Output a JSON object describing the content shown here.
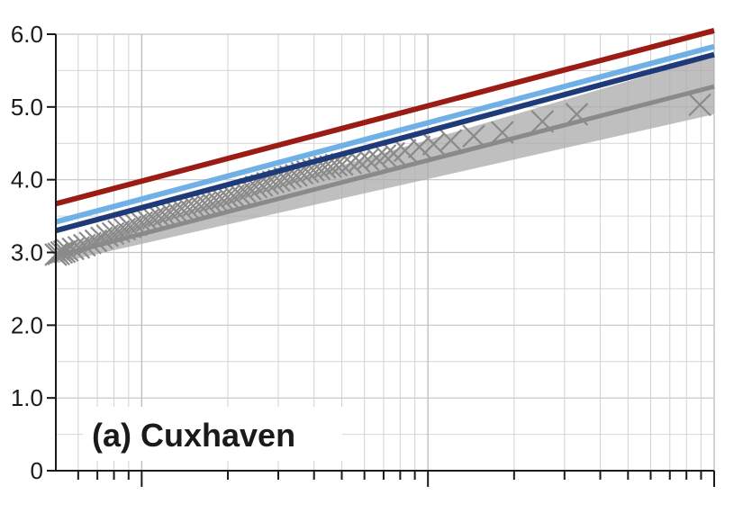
{
  "chart_data": {
    "type": "line",
    "title": "",
    "panel_label": "(a) Cuxhaven",
    "xlabel": "",
    "ylabel": "",
    "x_scale": "log",
    "x_range_decades": 2.3,
    "ylim": [
      0,
      6.0
    ],
    "y_ticks": [
      0,
      1.0,
      2.0,
      3.0,
      4.0,
      5.0,
      6.0
    ],
    "y_tick_labels": [
      "0",
      "1.0",
      "2.0",
      "3.0",
      "4.0",
      "5.0",
      "6.0"
    ],
    "grid": true,
    "series": [
      {
        "color": "#9b1c14",
        "y_start": 3.67,
        "y_end": 6.05
      },
      {
        "color": "#6fb0e6",
        "y_start": 3.42,
        "y_end": 5.83
      },
      {
        "color": "#1f3a78",
        "y_start": 3.3,
        "y_end": 5.72
      },
      {
        "color": "#8a8a8a",
        "y_start": 2.95,
        "y_end": 5.28,
        "band_lower_start": 2.85,
        "band_lower_end": 4.9,
        "band_upper_start": 3.05,
        "band_upper_end": 5.7
      }
    ],
    "observations": {
      "marker": "x",
      "color": "#8a8a8a",
      "points": [
        [
          0.0,
          2.97
        ],
        [
          0.01,
          2.98
        ],
        [
          0.02,
          3.0
        ],
        [
          0.03,
          3.01
        ],
        [
          0.04,
          3.03
        ],
        [
          0.06,
          3.05
        ],
        [
          0.08,
          3.07
        ],
        [
          0.1,
          3.1
        ],
        [
          0.12,
          3.13
        ],
        [
          0.14,
          3.16
        ],
        [
          0.16,
          3.2
        ],
        [
          0.18,
          3.23
        ],
        [
          0.2,
          3.26
        ],
        [
          0.22,
          3.29
        ],
        [
          0.24,
          3.32
        ],
        [
          0.26,
          3.35
        ],
        [
          0.28,
          3.38
        ],
        [
          0.3,
          3.41
        ],
        [
          0.32,
          3.44
        ],
        [
          0.34,
          3.47
        ],
        [
          0.36,
          3.5
        ],
        [
          0.38,
          3.52
        ],
        [
          0.4,
          3.55
        ],
        [
          0.42,
          3.57
        ],
        [
          0.44,
          3.6
        ],
        [
          0.46,
          3.62
        ],
        [
          0.48,
          3.64
        ],
        [
          0.5,
          3.66
        ],
        [
          0.52,
          3.68
        ],
        [
          0.54,
          3.7
        ],
        [
          0.56,
          3.72
        ],
        [
          0.58,
          3.74
        ],
        [
          0.6,
          3.76
        ],
        [
          0.62,
          3.78
        ],
        [
          0.64,
          3.81
        ],
        [
          0.66,
          3.84
        ],
        [
          0.68,
          3.87
        ],
        [
          0.7,
          3.9
        ],
        [
          0.72,
          3.92
        ],
        [
          0.74,
          3.95
        ],
        [
          0.76,
          3.97
        ],
        [
          0.78,
          3.99
        ],
        [
          0.8,
          4.02
        ],
        [
          0.82,
          4.04
        ],
        [
          0.84,
          4.06
        ],
        [
          0.86,
          4.09
        ],
        [
          0.88,
          4.11
        ],
        [
          0.9,
          4.13
        ],
        [
          0.92,
          4.15
        ],
        [
          0.94,
          4.17
        ],
        [
          0.96,
          4.18
        ],
        [
          0.98,
          4.2
        ],
        [
          1.0,
          4.21
        ],
        [
          1.03,
          4.23
        ],
        [
          1.06,
          4.25
        ],
        [
          1.09,
          4.28
        ],
        [
          1.12,
          4.3
        ],
        [
          1.15,
          4.33
        ],
        [
          1.18,
          4.36
        ],
        [
          1.22,
          4.4
        ],
        [
          1.27,
          4.45
        ],
        [
          1.32,
          4.49
        ],
        [
          1.38,
          4.54
        ],
        [
          1.46,
          4.6
        ],
        [
          1.56,
          4.65
        ],
        [
          1.7,
          4.8
        ],
        [
          1.82,
          4.9
        ],
        [
          2.25,
          5.03
        ]
      ]
    }
  }
}
